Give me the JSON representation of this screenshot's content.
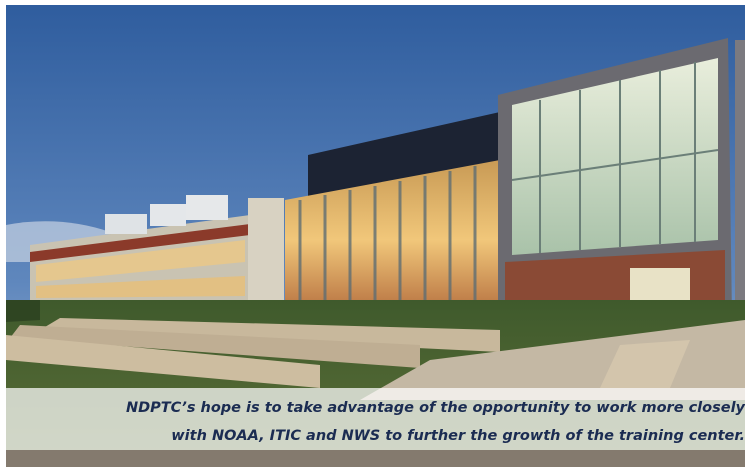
{
  "caption": {
    "lines": [
      "NDPTC’s hope is to take advantage of the opportunity to work more closely",
      "with NOAA, ITIC and NWS to further the growth of the training center."
    ]
  }
}
